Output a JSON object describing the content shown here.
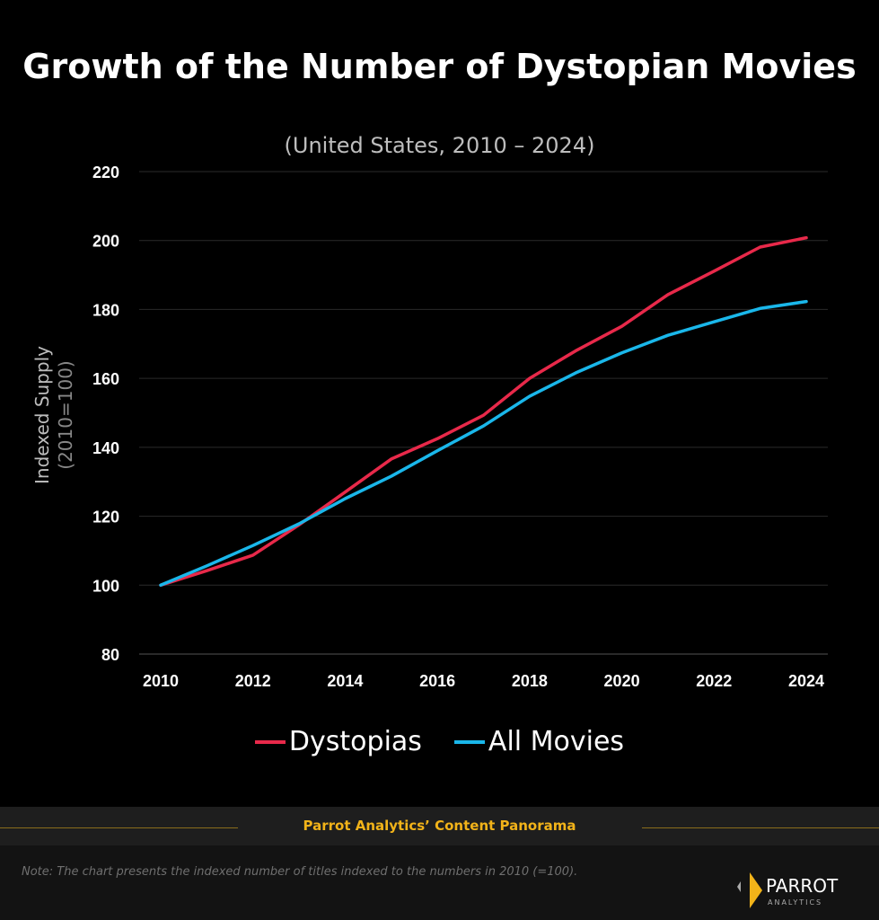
{
  "chart_data": {
    "type": "line",
    "title": "Growth of the Number of Dystopian Movies",
    "subtitle": "(United States, 2010 – 2024)",
    "ylabel": "Indexed Supply",
    "ylabel_sub": "(2010=100)",
    "xlabel": "",
    "x": [
      2010,
      2011,
      2012,
      2013,
      2014,
      2015,
      2016,
      2017,
      2018,
      2019,
      2020,
      2021,
      2022,
      2023,
      2024
    ],
    "xticks": [
      "2010",
      "2012",
      "2014",
      "2016",
      "2018",
      "2020",
      "2022",
      "2024"
    ],
    "yticks": [
      "80",
      "100",
      "120",
      "140",
      "160",
      "180",
      "200",
      "220"
    ],
    "ylim": [
      80,
      220
    ],
    "xlim": [
      2010,
      2024
    ],
    "grid": "horizontal",
    "legend_position": "bottom",
    "series": [
      {
        "name": "Dystopias",
        "color": "#e8294a",
        "values": [
          100,
          104.2,
          108.7,
          117.5,
          127,
          136.6,
          142.5,
          149.3,
          160,
          168,
          175.1,
          184.3,
          191.1,
          198.1,
          200.8
        ]
      },
      {
        "name": "All Movies",
        "color": "#1ab7ea",
        "values": [
          100,
          105.6,
          111.5,
          117.8,
          125.1,
          131.6,
          139,
          146.2,
          154.8,
          161.6,
          167.4,
          172.5,
          176.4,
          180.3,
          182.3
        ]
      }
    ]
  },
  "footer": {
    "banner": "Parrot Analytics’ Content Panorama",
    "banner_color": "#f2b319",
    "note": "Note: The chart presents the indexed number of titles indexed to the numbers in 2010 (=100).",
    "logo_text": "PARROT",
    "logo_sub": "ANALYTICS"
  }
}
